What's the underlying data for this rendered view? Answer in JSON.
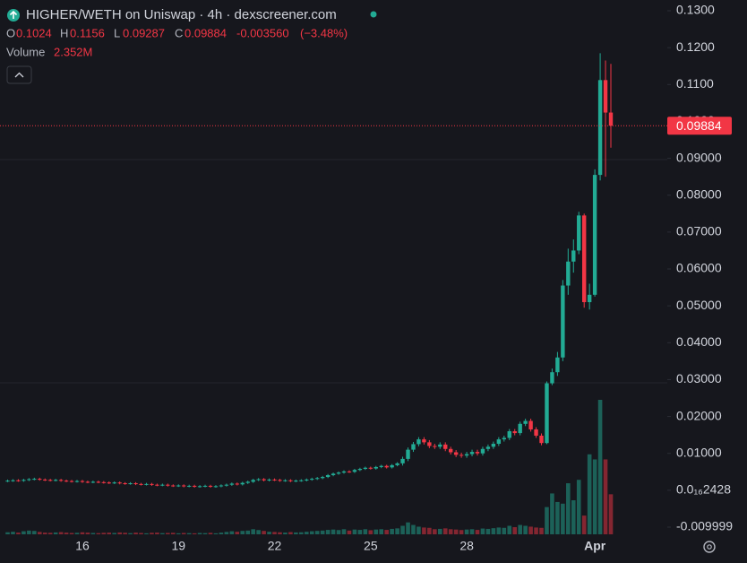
{
  "chart_data": {
    "type": "candlestick",
    "legend": {
      "title": "HIGHER/WETH on Uniswap · 4h · dexscreener.com",
      "o": "O",
      "open": "0.1024",
      "h": "H",
      "high": "0.1156",
      "l": "L",
      "low": "0.09287",
      "c": "C",
      "close": "0.09884",
      "change": "-0.003560",
      "change_pct": "(−3.48%)",
      "volume_name": "Volume",
      "volume": "2.352M"
    },
    "up_color": "#22ab94",
    "down_color": "#f23645",
    "last_price": 0.09884,
    "ylim": [
      -0.009999,
      0.13
    ],
    "yticks": [
      {
        "value": 0.13,
        "label": "0.1300"
      },
      {
        "value": 0.12,
        "label": "0.1200"
      },
      {
        "value": 0.11,
        "label": "0.1100"
      },
      {
        "value": 0.1,
        "label": "0.1000"
      },
      {
        "value": 0.09,
        "label": "0.09000"
      },
      {
        "value": 0.08,
        "label": "0.08000"
      },
      {
        "value": 0.07,
        "label": "0.07000"
      },
      {
        "value": 0.06,
        "label": "0.06000"
      },
      {
        "value": 0.05,
        "label": "0.05000"
      },
      {
        "value": 0.04,
        "label": "0.04000"
      },
      {
        "value": 0.03,
        "label": "0.03000"
      },
      {
        "value": 0.02,
        "label": "0.02000"
      },
      {
        "value": 0.01,
        "label": "0.01000"
      },
      {
        "value": 2.428e-17,
        "label": "0.0₁₆2428"
      },
      -0.009999
    ],
    "categories": [
      null,
      null,
      null,
      null,
      null,
      null,
      null,
      null,
      null,
      null,
      null,
      null,
      null,
      "16",
      null,
      null,
      null,
      null,
      null,
      null,
      null,
      null,
      null,
      null,
      null,
      null,
      null,
      null,
      null,
      null,
      null,
      "19",
      null,
      null,
      null,
      null,
      null,
      null,
      null,
      null,
      null,
      null,
      null,
      null,
      null,
      null,
      null,
      null,
      null,
      "22",
      null,
      null,
      null,
      null,
      null,
      null,
      null,
      null,
      null,
      null,
      null,
      null,
      null,
      null,
      null,
      null,
      null,
      "25",
      null,
      null,
      null,
      null,
      null,
      null,
      null,
      null,
      null,
      null,
      null,
      null,
      null,
      null,
      null,
      null,
      null,
      "28",
      null,
      null,
      null,
      null,
      null,
      null,
      null,
      null,
      null,
      null,
      null,
      null,
      null,
      null,
      null,
      null,
      null,
      null,
      null,
      null,
      null,
      null,
      null,
      "Apr",
      null,
      null,
      null,
      null
    ],
    "open": [
      0.0025,
      0.0026,
      0.0027,
      0.0026,
      0.0028,
      0.003,
      0.0031,
      0.0029,
      0.0028,
      0.0027,
      0.0028,
      0.0026,
      0.0025,
      0.0024,
      0.0025,
      0.0023,
      0.0022,
      0.0023,
      0.0022,
      0.0021,
      0.002,
      0.0021,
      0.0019,
      0.0018,
      0.0019,
      0.0017,
      0.0016,
      0.0017,
      0.0015,
      0.0014,
      0.0015,
      0.0013,
      0.0012,
      0.0013,
      0.0011,
      0.0012,
      0.001,
      0.0011,
      0.0012,
      0.001,
      0.0011,
      0.0013,
      0.0015,
      0.0018,
      0.0016,
      0.002,
      0.0023,
      0.0028,
      0.003,
      0.0027,
      0.0029,
      0.0028,
      0.0026,
      0.0027,
      0.0025,
      0.0026,
      0.0027,
      0.0029,
      0.0031,
      0.0033,
      0.0036,
      0.0041,
      0.0045,
      0.0048,
      0.0051,
      0.005,
      0.0055,
      0.0058,
      0.0061,
      0.0059,
      0.0063,
      0.0066,
      0.0062,
      0.0068,
      0.0073,
      0.0085,
      0.011,
      0.0125,
      0.0138,
      0.013,
      0.012,
      0.0118,
      0.0124,
      0.0112,
      0.0103,
      0.0096,
      0.0094,
      0.0098,
      0.0104,
      0.01,
      0.0112,
      0.0118,
      0.0126,
      0.0138,
      0.0142,
      0.016,
      0.0155,
      0.018,
      0.0188,
      0.0165,
      0.0148,
      0.0128,
      0.029,
      0.032,
      0.036,
      0.0555,
      0.062,
      0.065,
      0.0745,
      0.051,
      0.053,
      0.0855,
      0.1112,
      0.1024
    ],
    "high": [
      0.0029,
      0.003,
      0.003,
      0.0031,
      0.0033,
      0.0034,
      0.0034,
      0.0032,
      0.0031,
      0.0031,
      0.0031,
      0.0029,
      0.0028,
      0.0028,
      0.0028,
      0.0026,
      0.0026,
      0.0026,
      0.0025,
      0.0024,
      0.0024,
      0.0024,
      0.0022,
      0.0022,
      0.0022,
      0.002,
      0.002,
      0.002,
      0.0018,
      0.0018,
      0.0018,
      0.0016,
      0.0016,
      0.0016,
      0.0015,
      0.0015,
      0.0014,
      0.0015,
      0.0015,
      0.0014,
      0.0016,
      0.0018,
      0.0021,
      0.0021,
      0.0023,
      0.0026,
      0.0031,
      0.0033,
      0.0033,
      0.0032,
      0.0032,
      0.0031,
      0.003,
      0.003,
      0.0029,
      0.003,
      0.0032,
      0.0034,
      0.0036,
      0.0039,
      0.0044,
      0.0048,
      0.0051,
      0.0054,
      0.0054,
      0.0058,
      0.0061,
      0.0064,
      0.0064,
      0.0066,
      0.0069,
      0.0069,
      0.0071,
      0.0076,
      0.0091,
      0.0116,
      0.0131,
      0.0144,
      0.0144,
      0.0136,
      0.0126,
      0.013,
      0.013,
      0.0118,
      0.0109,
      0.0102,
      0.0104,
      0.011,
      0.011,
      0.0118,
      0.0124,
      0.0132,
      0.0144,
      0.0148,
      0.0166,
      0.0166,
      0.0186,
      0.0194,
      0.0194,
      0.0171,
      0.0154,
      0.0295,
      0.033,
      0.0375,
      0.057,
      0.0655,
      0.068,
      0.0755,
      0.075,
      0.056,
      0.087,
      0.1185,
      0.1165,
      0.1156
    ],
    "low": [
      0.0022,
      0.0023,
      0.0023,
      0.0023,
      0.0025,
      0.0027,
      0.0026,
      0.0025,
      0.0024,
      0.0024,
      0.0023,
      0.0022,
      0.0021,
      0.0021,
      0.002,
      0.0019,
      0.0019,
      0.0019,
      0.0018,
      0.0017,
      0.0017,
      0.0016,
      0.0015,
      0.0015,
      0.0014,
      0.0013,
      0.0013,
      0.0012,
      0.0011,
      0.0011,
      0.001,
      0.0009,
      0.0009,
      0.0008,
      0.0008,
      0.0007,
      0.0007,
      0.0008,
      0.0007,
      0.0007,
      0.0008,
      0.001,
      0.0012,
      0.0013,
      0.0013,
      0.0017,
      0.002,
      0.0025,
      0.0024,
      0.0024,
      0.0025,
      0.0023,
      0.0023,
      0.0022,
      0.0022,
      0.0023,
      0.0024,
      0.0026,
      0.0028,
      0.003,
      0.0033,
      0.0038,
      0.0042,
      0.0045,
      0.0047,
      0.0047,
      0.0052,
      0.0055,
      0.0056,
      0.0056,
      0.006,
      0.0059,
      0.0059,
      0.0065,
      0.0067,
      0.0079,
      0.0104,
      0.0119,
      0.0124,
      0.0114,
      0.0112,
      0.0112,
      0.0106,
      0.0097,
      0.009,
      0.0088,
      0.0088,
      0.0092,
      0.0094,
      0.0094,
      0.0106,
      0.0112,
      0.012,
      0.0132,
      0.0136,
      0.0149,
      0.0149,
      0.0174,
      0.0159,
      0.0142,
      0.0122,
      0.0125,
      0.0285,
      0.031,
      0.035,
      0.053,
      0.059,
      0.064,
      0.0495,
      0.049,
      0.0525,
      0.084,
      0.085,
      0.09287
    ],
    "close": [
      0.0026,
      0.0027,
      0.0026,
      0.0028,
      0.003,
      0.0031,
      0.0029,
      0.0028,
      0.0027,
      0.0028,
      0.0026,
      0.0025,
      0.0024,
      0.0025,
      0.0023,
      0.0022,
      0.0023,
      0.0022,
      0.0021,
      0.002,
      0.0021,
      0.0019,
      0.0018,
      0.0019,
      0.0017,
      0.0016,
      0.0017,
      0.0015,
      0.0014,
      0.0015,
      0.0013,
      0.0012,
      0.0013,
      0.0011,
      0.0012,
      0.001,
      0.0011,
      0.0012,
      0.001,
      0.0011,
      0.0013,
      0.0015,
      0.0018,
      0.0016,
      0.002,
      0.0023,
      0.0028,
      0.003,
      0.0027,
      0.0029,
      0.0028,
      0.0026,
      0.0027,
      0.0025,
      0.0026,
      0.0027,
      0.0029,
      0.0031,
      0.0033,
      0.0036,
      0.0041,
      0.0045,
      0.0048,
      0.0051,
      0.005,
      0.0055,
      0.0058,
      0.0061,
      0.0059,
      0.0063,
      0.0066,
      0.0062,
      0.0068,
      0.0073,
      0.0085,
      0.011,
      0.0125,
      0.0138,
      0.013,
      0.012,
      0.0118,
      0.0124,
      0.0112,
      0.0103,
      0.0096,
      0.0094,
      0.0098,
      0.0104,
      0.01,
      0.0112,
      0.0118,
      0.0126,
      0.0138,
      0.0142,
      0.016,
      0.0155,
      0.018,
      0.0188,
      0.0165,
      0.0148,
      0.0128,
      0.029,
      0.032,
      0.036,
      0.0555,
      0.062,
      0.065,
      0.0745,
      0.051,
      0.053,
      0.0855,
      0.1112,
      0.1024,
      0.09884
    ],
    "volume": [
      0.12,
      0.15,
      0.1,
      0.18,
      0.22,
      0.2,
      0.14,
      0.1,
      0.09,
      0.11,
      0.13,
      0.1,
      0.08,
      0.09,
      0.12,
      0.1,
      0.08,
      0.07,
      0.09,
      0.1,
      0.08,
      0.11,
      0.09,
      0.07,
      0.1,
      0.08,
      0.06,
      0.09,
      0.1,
      0.07,
      0.08,
      0.09,
      0.06,
      0.08,
      0.07,
      0.06,
      0.08,
      0.07,
      0.09,
      0.06,
      0.1,
      0.14,
      0.18,
      0.15,
      0.2,
      0.22,
      0.3,
      0.25,
      0.2,
      0.15,
      0.14,
      0.12,
      0.1,
      0.13,
      0.11,
      0.12,
      0.15,
      0.18,
      0.2,
      0.22,
      0.26,
      0.28,
      0.25,
      0.3,
      0.22,
      0.28,
      0.26,
      0.3,
      0.24,
      0.28,
      0.3,
      0.26,
      0.32,
      0.35,
      0.5,
      0.7,
      0.55,
      0.45,
      0.4,
      0.38,
      0.3,
      0.32,
      0.35,
      0.3,
      0.28,
      0.25,
      0.28,
      0.3,
      0.26,
      0.34,
      0.32,
      0.36,
      0.4,
      0.38,
      0.5,
      0.42,
      0.55,
      0.5,
      0.45,
      0.4,
      0.38,
      1.6,
      2.4,
      1.9,
      1.8,
      3.0,
      2.0,
      3.2,
      1.1,
      4.7,
      4.4,
      7.9,
      4.4,
      2.352
    ]
  }
}
